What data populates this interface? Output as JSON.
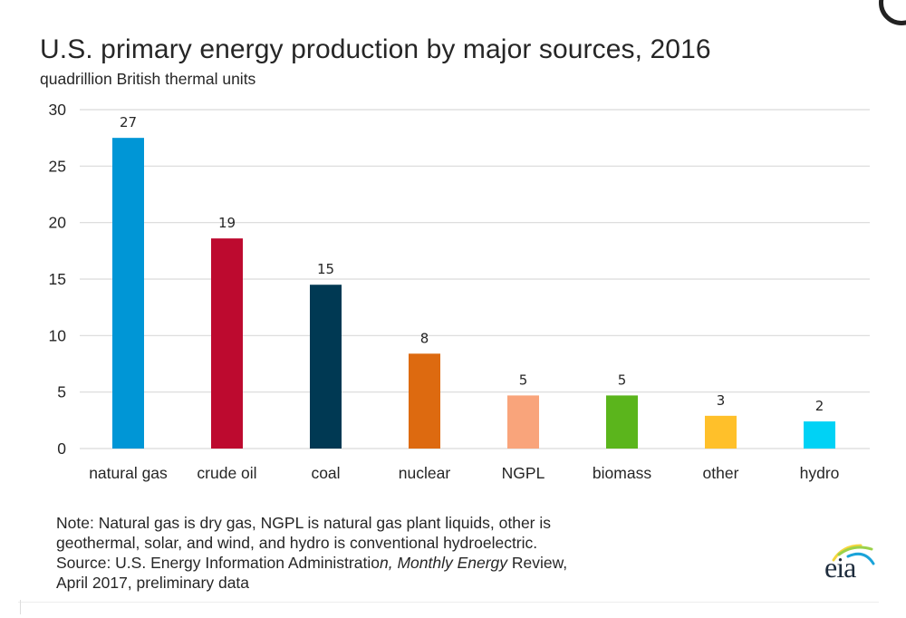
{
  "header": {
    "title": "U.S. primary energy production by major sources, 2016",
    "subtitle": "quadrillion British thermal units"
  },
  "chart_data": {
    "type": "bar",
    "title": "U.S. primary energy production by major sources, 2016",
    "subtitle": "quadrillion British thermal units",
    "xlabel": "",
    "ylabel": "quadrillion British thermal units",
    "categories": [
      "natural gas",
      "crude oil",
      "coal",
      "nuclear",
      "NGPL",
      "biomass",
      "other",
      "hydro"
    ],
    "values": [
      27.5,
      18.6,
      14.5,
      8.4,
      4.7,
      4.7,
      2.9,
      2.4
    ],
    "data_labels": [
      "27",
      "19",
      "15",
      "8",
      "5",
      "5",
      "3",
      "2"
    ],
    "colors": [
      "#0096d6",
      "#bd0a2f",
      "#003953",
      "#dd6a10",
      "#f9a47b",
      "#5bb51c",
      "#ffc02a",
      "#00d2f5"
    ],
    "ylim": [
      0,
      30
    ],
    "yticks": [
      0,
      5,
      10,
      15,
      20,
      25,
      30
    ],
    "ytick_labels": [
      "0",
      "5",
      "10",
      "15",
      "20",
      "25",
      "30"
    ],
    "grid": true,
    "legend": "none"
  },
  "footer": {
    "note_line1": "Note: Natural gas is dry gas, NGPL is natural gas plant liquids, other is",
    "note_line2": "geothermal, solar, and wind, and hydro is conventional hydroelectric.",
    "source_prefix": "Source: U.S. Energy Information Administratio",
    "source_italic_n": "n, ",
    "source_italic_pub": "Monthly Energy",
    "source_review": " Review,",
    "source_line2": "April 2017, preliminary data"
  },
  "logo": {
    "text": "eia",
    "arc_colors": [
      "#f5d63d",
      "#9bd14a",
      "#1aa3d9"
    ]
  }
}
